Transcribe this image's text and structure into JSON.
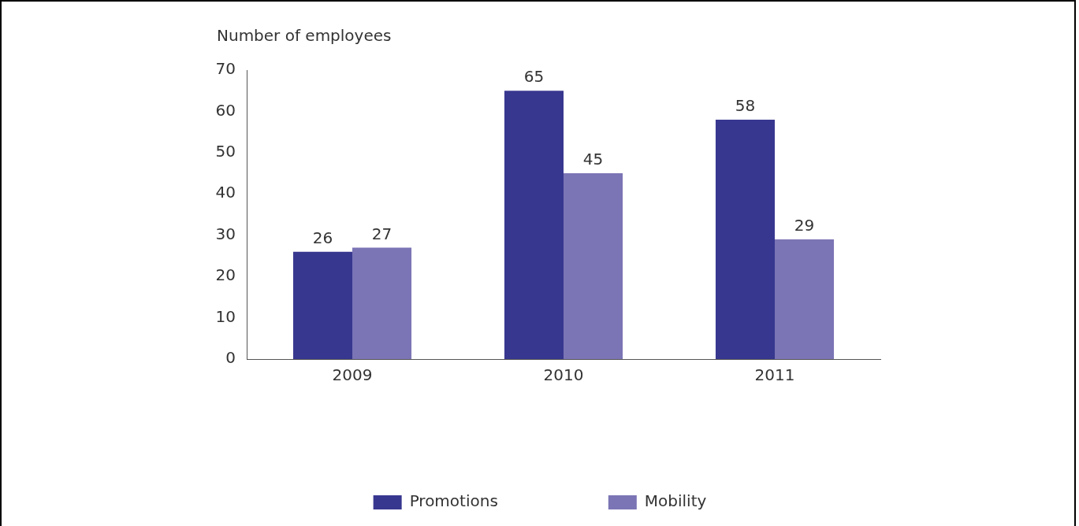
{
  "chart_data": {
    "type": "bar",
    "ylabel": "Number of employees",
    "categories": [
      "2009",
      "2010",
      "2011"
    ],
    "series": [
      {
        "name": "Promotions",
        "color": "#38378f",
        "values": [
          26,
          65,
          58
        ]
      },
      {
        "name": "Mobility",
        "color": "#7b75b5",
        "values": [
          27,
          45,
          29
        ]
      }
    ],
    "ylim": [
      0,
      70
    ],
    "yticks": [
      0,
      10,
      20,
      30,
      40,
      50,
      60,
      70
    ],
    "grid": false,
    "legend": "bottom",
    "data_labels": true
  }
}
